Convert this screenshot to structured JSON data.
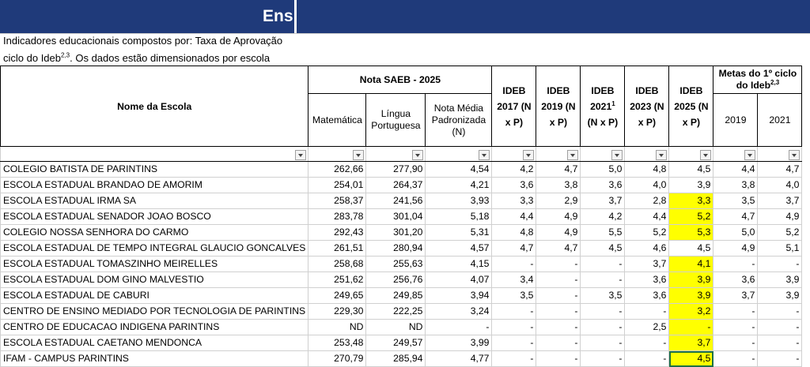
{
  "banner": {
    "title": "Ens"
  },
  "description": {
    "line1": "Indicadores educacionais compostos por: Taxa de Aprovação",
    "line2_pre": "ciclo do Ideb",
    "line2_sup": "2,3",
    "line2_post": ". Os dados estão dimensionados por escola"
  },
  "headers": {
    "nome_escola": "Nome da Escola",
    "nota_saeb": "Nota SAEB - 2025",
    "matematica": "Matemática",
    "lingua": "Língua Portuguesa",
    "nota_media": "Nota Média Padronizada (N)",
    "ideb2017": "IDEB 2017 (N x P)",
    "ideb2019": "IDEB 2019 (N x P)",
    "ideb2021_pre": "IDEB 2021",
    "ideb2021_sup": "1",
    "ideb2021_post": "(N x P)",
    "ideb2023": "IDEB 2023 (N x P)",
    "ideb2025": "IDEB 2025 (N x P)",
    "metas_pre": "Metas do 1º ciclo do Ideb",
    "metas_sup": "2,3",
    "meta2019": "2019",
    "meta2021": "2021"
  },
  "rows": [
    {
      "name": "COLEGIO BATISTA DE PARINTINS",
      "mat": "262,66",
      "lp": "277,90",
      "n": "4,54",
      "i17": "4,2",
      "i19": "4,7",
      "i21": "5,0",
      "i23": "4,8",
      "i25": "4,5",
      "m19": "4,4",
      "m21": "4,7",
      "hl": false
    },
    {
      "name": "ESCOLA ESTADUAL BRANDAO DE AMORIM",
      "mat": "254,01",
      "lp": "264,37",
      "n": "4,21",
      "i17": "3,6",
      "i19": "3,8",
      "i21": "3,6",
      "i23": "4,0",
      "i25": "3,9",
      "m19": "3,8",
      "m21": "4,0",
      "hl": false
    },
    {
      "name": "ESCOLA ESTADUAL IRMA SA",
      "mat": "258,37",
      "lp": "241,56",
      "n": "3,93",
      "i17": "3,3",
      "i19": "2,9",
      "i21": "3,7",
      "i23": "2,8",
      "i25": "3,3",
      "m19": "3,5",
      "m21": "3,7",
      "hl": true
    },
    {
      "name": "ESCOLA ESTADUAL SENADOR JOAO BOSCO",
      "mat": "283,78",
      "lp": "301,04",
      "n": "5,18",
      "i17": "4,4",
      "i19": "4,9",
      "i21": "4,2",
      "i23": "4,4",
      "i25": "5,2",
      "m19": "4,7",
      "m21": "4,9",
      "hl": true
    },
    {
      "name": "COLEGIO NOSSA SENHORA DO CARMO",
      "mat": "292,43",
      "lp": "301,20",
      "n": "5,31",
      "i17": "4,8",
      "i19": "4,9",
      "i21": "5,5",
      "i23": "5,2",
      "i25": "5,3",
      "m19": "5,0",
      "m21": "5,2",
      "hl": true
    },
    {
      "name": "ESCOLA ESTADUAL DE TEMPO INTEGRAL GLAUCIO GONCALVES",
      "mat": "261,51",
      "lp": "280,94",
      "n": "4,57",
      "i17": "4,7",
      "i19": "4,7",
      "i21": "4,5",
      "i23": "4,6",
      "i25": "4,5",
      "m19": "4,9",
      "m21": "5,1",
      "hl": false
    },
    {
      "name": "ESCOLA ESTADUAL TOMASZINHO MEIRELLES",
      "mat": "258,68",
      "lp": "255,63",
      "n": "4,15",
      "i17": "-",
      "i19": "-",
      "i21": "-",
      "i23": "3,7",
      "i25": "4,1",
      "m19": "-",
      "m21": "-",
      "hl": true
    },
    {
      "name": "ESCOLA ESTADUAL DOM GINO MALVESTIO",
      "mat": "251,62",
      "lp": "256,76",
      "n": "4,07",
      "i17": "3,4",
      "i19": "-",
      "i21": "-",
      "i23": "3,6",
      "i25": "3,9",
      "m19": "3,6",
      "m21": "3,9",
      "hl": true
    },
    {
      "name": "ESCOLA ESTADUAL DE CABURI",
      "mat": "249,65",
      "lp": "249,85",
      "n": "3,94",
      "i17": "3,5",
      "i19": "-",
      "i21": "3,5",
      "i23": "3,6",
      "i25": "3,9",
      "m19": "3,7",
      "m21": "3,9",
      "hl": true
    },
    {
      "name": "CENTRO DE ENSINO MEDIADO POR TECNOLOGIA DE PARINTINS",
      "mat": "229,30",
      "lp": "222,25",
      "n": "3,24",
      "i17": "-",
      "i19": "-",
      "i21": "-",
      "i23": "-",
      "i25": "3,2",
      "m19": "-",
      "m21": "-",
      "hl": true
    },
    {
      "name": "CENTRO DE EDUCACAO INDIGENA PARINTINS",
      "mat": "ND",
      "lp": "ND",
      "n": "-",
      "i17": "-",
      "i19": "-",
      "i21": "-",
      "i23": "2,5",
      "i25": "-",
      "m19": "-",
      "m21": "-",
      "hl": true
    },
    {
      "name": "ESCOLA ESTADUAL CAETANO MENDONCA",
      "mat": "253,48",
      "lp": "249,57",
      "n": "3,99",
      "i17": "-",
      "i19": "-",
      "i21": "-",
      "i23": "-",
      "i25": "3,7",
      "m19": "-",
      "m21": "-",
      "hl": true
    },
    {
      "name": "IFAM - CAMPUS PARINTINS",
      "mat": "270,79",
      "lp": "285,94",
      "n": "4,77",
      "i17": "-",
      "i19": "-",
      "i21": "-",
      "i23": "-",
      "i25": "4,5",
      "m19": "-",
      "m21": "-",
      "hl": true
    }
  ]
}
